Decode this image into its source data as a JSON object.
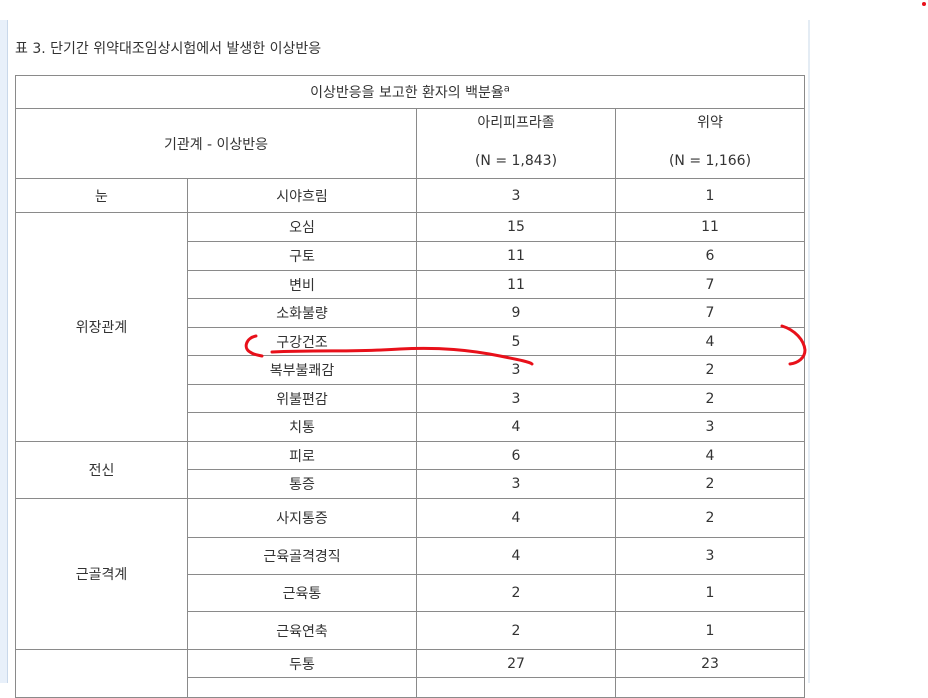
{
  "caption": "표 3. 단기간 위약대조임상시험에서 발생한 이상반응",
  "header": {
    "title": "이상반응을 보고한 환자의 백분율",
    "title_sup": "a",
    "row_label": "기관계 - 이상반응",
    "col1_name": "아리피프라졸",
    "col1_n": "(N = 1,843)",
    "col2_name": "위약",
    "col2_n": "(N = 1,166)"
  },
  "groups": [
    {
      "name": "눈",
      "rows": [
        {
          "event": "시야흐림",
          "aripiprazole": "3",
          "placebo": "1"
        }
      ]
    },
    {
      "name": "위장관계",
      "rows": [
        {
          "event": "오심",
          "aripiprazole": "15",
          "placebo": "11"
        },
        {
          "event": "구토",
          "aripiprazole": "11",
          "placebo": "6"
        },
        {
          "event": "변비",
          "aripiprazole": "11",
          "placebo": "7"
        },
        {
          "event": "소화불량",
          "aripiprazole": "9",
          "placebo": "7"
        },
        {
          "event": "구강건조",
          "aripiprazole": "5",
          "placebo": "4"
        },
        {
          "event": "복부불쾌감",
          "aripiprazole": "3",
          "placebo": "2"
        },
        {
          "event": "위불편감",
          "aripiprazole": "3",
          "placebo": "2"
        },
        {
          "event": "치통",
          "aripiprazole": "4",
          "placebo": "3"
        }
      ]
    },
    {
      "name": "전신",
      "rows": [
        {
          "event": "피로",
          "aripiprazole": "6",
          "placebo": "4"
        },
        {
          "event": "통증",
          "aripiprazole": "3",
          "placebo": "2"
        }
      ]
    },
    {
      "name": "근골격계",
      "rows": [
        {
          "event": "사지통증",
          "aripiprazole": "4",
          "placebo": "2"
        },
        {
          "event": "근육골격경직",
          "aripiprazole": "4",
          "placebo": "3"
        },
        {
          "event": "근육통",
          "aripiprazole": "2",
          "placebo": "1"
        },
        {
          "event": "근육연축",
          "aripiprazole": "2",
          "placebo": "1"
        }
      ]
    },
    {
      "name": "",
      "rows": [
        {
          "event": "두통",
          "aripiprazole": "27",
          "placebo": "23"
        },
        {
          "event": "",
          "aripiprazole": "",
          "placebo": ""
        }
      ]
    }
  ],
  "annotation_color": "#e8101a"
}
